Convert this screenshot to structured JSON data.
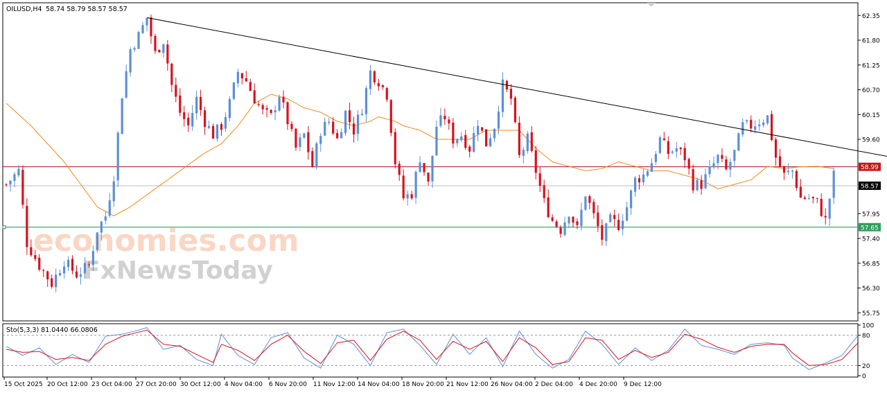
{
  "header": {
    "symbol": "OILUSD,H4",
    "ohlc": "58.74 58.79 58.57 58.57"
  },
  "stoch_header": "Sto(5,3,3) 81.0440 66.0806",
  "watermark": {
    "line1": "economies.com",
    "line2": "FxNewsToday"
  },
  "colors": {
    "bull": "#5b8fd6",
    "bear": "#d6121e",
    "ma": "#f08a1c",
    "trendline": "#000000",
    "level_resistance": "#a01010",
    "level_support": "#1f8f4f",
    "stoch_main": "#5b8fd6",
    "stoch_signal": "#d6121e"
  },
  "chart_data": [
    {
      "type": "candlestick",
      "title": "OILUSD,H4",
      "ylim": [
        55.6,
        62.6
      ],
      "yticks": [
        "62.35",
        "61.80",
        "61.25",
        "60.70",
        "60.15",
        "59.60",
        "58.99",
        "58.57",
        "57.95",
        "57.65",
        "57.40",
        "56.85",
        "56.30",
        "55.75"
      ],
      "xticks": [
        "15 Oct 2025",
        "20 Oct 12:00",
        "23 Oct 04:00",
        "27 Oct 20:00",
        "30 Oct 12:00",
        "4 Nov 04:00",
        "6 Nov 20:00",
        "11 Nov 12:00",
        "14 Nov 04:00",
        "18 Nov 20:00",
        "21 Nov 12:00",
        "26 Nov 04:00",
        "2 Dec 04:00",
        "4 Dec 20:00",
        "9 Dec 12:00"
      ],
      "price_anchors": [
        [
          0,
          58.6
        ],
        [
          3,
          58.9
        ],
        [
          5,
          57.3
        ],
        [
          8,
          56.8
        ],
        [
          11,
          56.4
        ],
        [
          14,
          56.9
        ],
        [
          17,
          56.6
        ],
        [
          20,
          56.8
        ],
        [
          22,
          57.6
        ],
        [
          24,
          57.9
        ],
        [
          26,
          58.8
        ],
        [
          28,
          60.6
        ],
        [
          30,
          61.6
        ],
        [
          32,
          61.9
        ],
        [
          34,
          62.3
        ],
        [
          36,
          61.5
        ],
        [
          38,
          61.8
        ],
        [
          40,
          60.8
        ],
        [
          42,
          60.2
        ],
        [
          44,
          59.9
        ],
        [
          46,
          60.5
        ],
        [
          48,
          60.0
        ],
        [
          50,
          59.7
        ],
        [
          52,
          59.9
        ],
        [
          54,
          60.4
        ],
        [
          56,
          61.1
        ],
        [
          58,
          60.9
        ],
        [
          60,
          60.5
        ],
        [
          62,
          60.2
        ],
        [
          64,
          60.1
        ],
        [
          66,
          60.6
        ],
        [
          68,
          60.0
        ],
        [
          70,
          59.4
        ],
        [
          72,
          59.7
        ],
        [
          74,
          59.0
        ],
        [
          76,
          59.8
        ],
        [
          78,
          60.0
        ],
        [
          80,
          59.6
        ],
        [
          82,
          60.2
        ],
        [
          84,
          59.8
        ],
        [
          86,
          60.3
        ],
        [
          88,
          61.1
        ],
        [
          90,
          60.9
        ],
        [
          92,
          60.6
        ],
        [
          94,
          59.1
        ],
        [
          96,
          58.3
        ],
        [
          98,
          58.4
        ],
        [
          100,
          59.2
        ],
        [
          102,
          58.6
        ],
        [
          104,
          59.9
        ],
        [
          106,
          60.1
        ],
        [
          108,
          59.6
        ],
        [
          110,
          59.7
        ],
        [
          112,
          59.4
        ],
        [
          114,
          60.0
        ],
        [
          116,
          59.5
        ],
        [
          118,
          59.9
        ],
        [
          120,
          60.8
        ],
        [
          122,
          60.5
        ],
        [
          124,
          59.2
        ],
        [
          126,
          59.6
        ],
        [
          128,
          58.9
        ],
        [
          130,
          58.2
        ],
        [
          132,
          57.8
        ],
        [
          134,
          57.6
        ],
        [
          136,
          58.0
        ],
        [
          138,
          57.6
        ],
        [
          140,
          58.4
        ],
        [
          142,
          57.9
        ],
        [
          144,
          57.4
        ],
        [
          146,
          57.8
        ],
        [
          148,
          57.7
        ],
        [
          150,
          58.1
        ],
        [
          152,
          58.7
        ],
        [
          154,
          58.8
        ],
        [
          156,
          59.1
        ],
        [
          158,
          59.6
        ],
        [
          160,
          59.3
        ],
        [
          162,
          59.4
        ],
        [
          164,
          59.2
        ],
        [
          166,
          58.6
        ],
        [
          168,
          58.6
        ],
        [
          170,
          58.9
        ],
        [
          172,
          59.2
        ],
        [
          174,
          58.9
        ],
        [
          176,
          59.3
        ],
        [
          178,
          59.9
        ],
        [
          180,
          59.9
        ],
        [
          182,
          60.0
        ],
        [
          184,
          60.1
        ],
        [
          186,
          59.2
        ],
        [
          188,
          58.8
        ],
        [
          190,
          58.9
        ],
        [
          192,
          58.3
        ],
        [
          194,
          58.3
        ],
        [
          196,
          58.2
        ],
        [
          198,
          57.8
        ],
        [
          200,
          58.8
        ]
      ],
      "ma_anchors": [
        [
          0,
          60.4
        ],
        [
          6,
          59.9
        ],
        [
          14,
          59.1
        ],
        [
          22,
          58.1
        ],
        [
          26,
          57.9
        ],
        [
          30,
          58.1
        ],
        [
          36,
          58.5
        ],
        [
          42,
          58.9
        ],
        [
          48,
          59.3
        ],
        [
          52,
          59.5
        ],
        [
          56,
          59.9
        ],
        [
          60,
          60.4
        ],
        [
          64,
          60.6
        ],
        [
          68,
          60.5
        ],
        [
          72,
          60.3
        ],
        [
          76,
          60.2
        ],
        [
          80,
          60.0
        ],
        [
          84,
          59.9
        ],
        [
          88,
          60.0
        ],
        [
          90,
          60.1
        ],
        [
          94,
          60.0
        ],
        [
          96,
          59.9
        ],
        [
          100,
          59.8
        ],
        [
          104,
          59.6
        ],
        [
          108,
          59.6
        ],
        [
          112,
          59.6
        ],
        [
          116,
          59.8
        ],
        [
          120,
          59.8
        ],
        [
          124,
          59.8
        ],
        [
          128,
          59.4
        ],
        [
          132,
          59.1
        ],
        [
          136,
          59.0
        ],
        [
          140,
          58.9
        ],
        [
          144,
          58.95
        ],
        [
          148,
          59.1
        ],
        [
          152,
          59.0
        ],
        [
          156,
          58.9
        ],
        [
          160,
          58.9
        ],
        [
          164,
          58.8
        ],
        [
          168,
          58.7
        ],
        [
          172,
          58.5
        ],
        [
          176,
          58.6
        ],
        [
          180,
          58.7
        ],
        [
          184,
          59.0
        ],
        [
          188,
          58.95
        ],
        [
          192,
          58.99
        ],
        [
          196,
          59.0
        ],
        [
          200,
          58.95
        ]
      ],
      "trendline": {
        "from": [
          34,
          62.3
        ],
        "to": [
          220,
          59.1
        ]
      },
      "levels": [
        {
          "label": "58.99",
          "value": 58.99,
          "kind": "resistance"
        },
        {
          "label": "57.65",
          "value": 57.65,
          "kind": "support"
        },
        {
          "label": "58.57",
          "value": 58.57,
          "kind": "current"
        }
      ]
    },
    {
      "type": "line",
      "title": "Sto(5,3,3)",
      "ylim": [
        0,
        100
      ],
      "yticks": [
        "100",
        "80",
        "20",
        "0"
      ],
      "levels": [
        80,
        20
      ],
      "series": [
        {
          "name": "main",
          "values_anchors": [
            [
              0,
              58
            ],
            [
              4,
              40
            ],
            [
              8,
              55
            ],
            [
              12,
              22
            ],
            [
              16,
              42
            ],
            [
              20,
              26
            ],
            [
              24,
              78
            ],
            [
              28,
              82
            ],
            [
              32,
              90
            ],
            [
              34,
              95
            ],
            [
              38,
              52
            ],
            [
              42,
              60
            ],
            [
              46,
              32
            ],
            [
              50,
              20
            ],
            [
              52,
              82
            ],
            [
              56,
              40
            ],
            [
              60,
              22
            ],
            [
              64,
              75
            ],
            [
              68,
              85
            ],
            [
              72,
              35
            ],
            [
              76,
              15
            ],
            [
              80,
              80
            ],
            [
              84,
              62
            ],
            [
              88,
              20
            ],
            [
              92,
              85
            ],
            [
              96,
              92
            ],
            [
              100,
              60
            ],
            [
              104,
              22
            ],
            [
              108,
              82
            ],
            [
              112,
              42
            ],
            [
              116,
              75
            ],
            [
              120,
              18
            ],
            [
              124,
              88
            ],
            [
              128,
              42
            ],
            [
              132,
              15
            ],
            [
              136,
              32
            ],
            [
              140,
              88
            ],
            [
              144,
              62
            ],
            [
              148,
              22
            ],
            [
              152,
              55
            ],
            [
              156,
              30
            ],
            [
              160,
              50
            ],
            [
              164,
              92
            ],
            [
              168,
              60
            ],
            [
              172,
              52
            ],
            [
              176,
              42
            ],
            [
              180,
              62
            ],
            [
              184,
              65
            ],
            [
              188,
              60
            ],
            [
              190,
              35
            ],
            [
              194,
              12
            ],
            [
              198,
              25
            ],
            [
              202,
              40
            ],
            [
              206,
              81
            ]
          ]
        },
        {
          "name": "signal",
          "values_anchors": [
            [
              0,
              52
            ],
            [
              4,
              46
            ],
            [
              8,
              48
            ],
            [
              12,
              32
            ],
            [
              16,
              36
            ],
            [
              20,
              30
            ],
            [
              24,
              62
            ],
            [
              28,
              78
            ],
            [
              32,
              86
            ],
            [
              34,
              90
            ],
            [
              38,
              62
            ],
            [
              42,
              58
            ],
            [
              46,
              42
            ],
            [
              50,
              26
            ],
            [
              52,
              62
            ],
            [
              56,
              50
            ],
            [
              60,
              30
            ],
            [
              64,
              62
            ],
            [
              68,
              80
            ],
            [
              72,
              48
            ],
            [
              76,
              24
            ],
            [
              80,
              65
            ],
            [
              84,
              70
            ],
            [
              88,
              30
            ],
            [
              92,
              72
            ],
            [
              96,
              88
            ],
            [
              100,
              70
            ],
            [
              104,
              32
            ],
            [
              108,
              68
            ],
            [
              112,
              52
            ],
            [
              116,
              68
            ],
            [
              120,
              28
            ],
            [
              124,
              75
            ],
            [
              128,
              55
            ],
            [
              132,
              22
            ],
            [
              136,
              28
            ],
            [
              140,
              75
            ],
            [
              144,
              70
            ],
            [
              148,
              32
            ],
            [
              152,
              50
            ],
            [
              156,
              36
            ],
            [
              160,
              46
            ],
            [
              164,
              82
            ],
            [
              168,
              72
            ],
            [
              172,
              56
            ],
            [
              176,
              46
            ],
            [
              180,
              58
            ],
            [
              184,
              62
            ],
            [
              188,
              62
            ],
            [
              190,
              45
            ],
            [
              194,
              20
            ],
            [
              198,
              22
            ],
            [
              202,
              32
            ],
            [
              206,
              66
            ]
          ]
        }
      ]
    }
  ]
}
